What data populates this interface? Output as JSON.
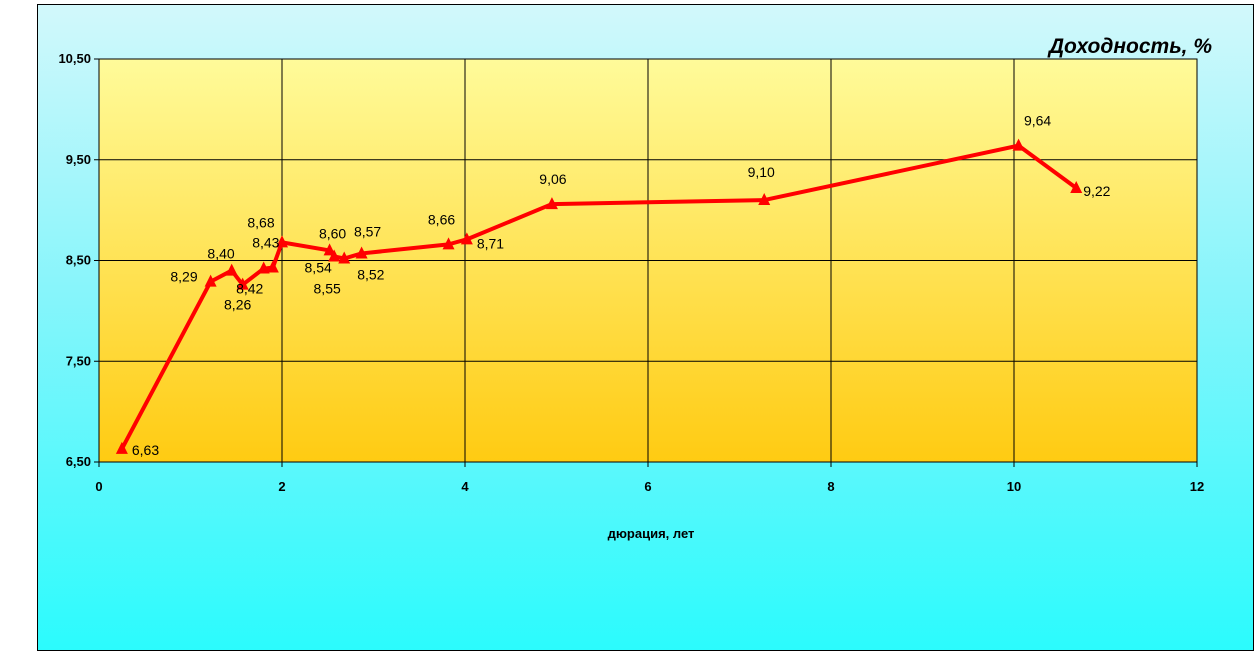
{
  "chart_data": {
    "type": "line",
    "title": "Доходность, %",
    "xlabel": "дюрация, лет",
    "ylabel": "",
    "xlim": [
      0,
      12
    ],
    "ylim": [
      6.5,
      10.5
    ],
    "x_ticks": [
      "0",
      "2",
      "4",
      "6",
      "8",
      "10",
      "12"
    ],
    "y_ticks": [
      "6,50",
      "7,50",
      "8,50",
      "9,50",
      "10,50"
    ],
    "grid": true,
    "legend": "none",
    "series": [
      {
        "color": "#ff0000",
        "marker": "triangle",
        "points": [
          {
            "x": 0.25,
            "y": 6.63,
            "label": "6,63"
          },
          {
            "x": 1.22,
            "y": 8.29,
            "label": "8,29"
          },
          {
            "x": 1.45,
            "y": 8.4,
            "label": "8,40"
          },
          {
            "x": 1.57,
            "y": 8.26,
            "label": "8,26"
          },
          {
            "x": 1.8,
            "y": 8.42,
            "label": "8,42"
          },
          {
            "x": 1.9,
            "y": 8.43,
            "label": "8,43"
          },
          {
            "x": 2.0,
            "y": 8.68,
            "label": "8,68"
          },
          {
            "x": 2.52,
            "y": 8.6,
            "label": "8,60"
          },
          {
            "x": 2.57,
            "y": 8.54,
            "label": "8,54"
          },
          {
            "x": 2.68,
            "y": 8.52,
            "label": "8,52"
          },
          {
            "x": 2.87,
            "y": 8.57,
            "label": "8,57"
          },
          {
            "x": 3.82,
            "y": 8.66,
            "label": "8,66"
          },
          {
            "x": 4.02,
            "y": 8.71,
            "label": "8,71"
          },
          {
            "x": 4.95,
            "y": 9.06,
            "label": "9,06"
          },
          {
            "x": 7.27,
            "y": 9.1,
            "label": "9,10"
          },
          {
            "x": 10.05,
            "y": 9.64,
            "label": "9,64"
          },
          {
            "x": 10.68,
            "y": 9.22,
            "label": "9,22"
          }
        ],
        "extra_labels": [
          {
            "near_index": 8,
            "label": "8,55"
          }
        ]
      }
    ],
    "colors": {
      "plot_top": "#fffb9a",
      "plot_bottom": "#ffcb12",
      "line": "#ff0000",
      "grid": "#000000"
    }
  }
}
